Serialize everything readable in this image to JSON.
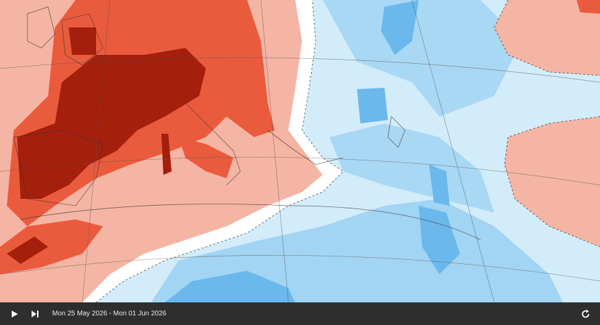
{
  "player": {
    "date_range": "Mon 25 May 2026 - Mon 01 Jun 2026"
  }
}
